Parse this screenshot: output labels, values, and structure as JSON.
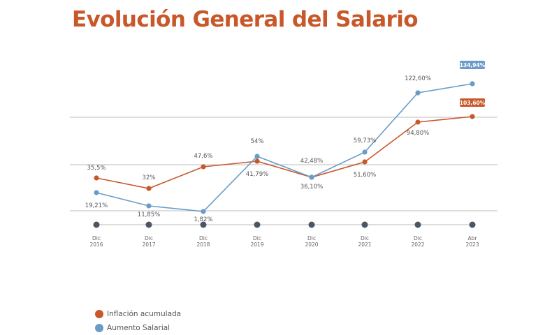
{
  "chart_data": {
    "type": "line",
    "title": "Evolución General del Salario",
    "categories": [
      "Dic 2016",
      "Dic 2017",
      "Dic 2018",
      "Dic 2019",
      "Dic 2020",
      "Dic 2021",
      "Dic 2022",
      "Abr 2023"
    ],
    "category_lines": [
      [
        "Dic",
        "2016"
      ],
      [
        "Dic",
        "2017"
      ],
      [
        "Dic",
        "2018"
      ],
      [
        "Dic",
        "2019"
      ],
      [
        "Dic",
        "2020"
      ],
      [
        "Dic",
        "2021"
      ],
      [
        "Dic",
        "2022"
      ],
      [
        "Abr",
        "2023"
      ]
    ],
    "series": [
      {
        "name": "Inflación acumulada",
        "color": "#c8582a",
        "values": [
          35.5,
          32,
          47.6,
          41.79,
          36.1,
          51.6,
          94.8,
          103.6
        ],
        "labels": [
          "35,5%",
          "32%",
          "47,6%",
          "41,79%",
          "36,10%",
          "51,60%",
          "94,80%",
          "103,60%"
        ]
      },
      {
        "name": "Aumento Salarial",
        "color": "#6a9cc7",
        "values": [
          19.21,
          11.85,
          1.82,
          54,
          42.48,
          59.73,
          122.6,
          134.94
        ],
        "labels": [
          "19,21%",
          "11,85%",
          "1,82%",
          "54%",
          "42,48%",
          "59,73%",
          "122,60%",
          "134,94%"
        ]
      }
    ],
    "xlabel": "",
    "ylabel": "",
    "grid": true,
    "legend": "bottom-left",
    "timeline_color": "#4a5663"
  }
}
